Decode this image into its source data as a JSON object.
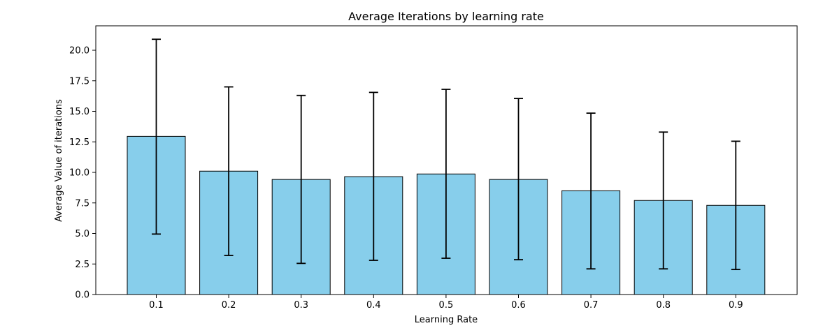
{
  "chart_data": {
    "type": "bar",
    "title": "Average Iterations by learning rate",
    "xlabel": "Learning Rate",
    "ylabel": "Average Value of iterations",
    "categories": [
      "0.1",
      "0.2",
      "0.3",
      "0.4",
      "0.5",
      "0.6",
      "0.7",
      "0.8",
      "0.9"
    ],
    "values": [
      12.95,
      10.1,
      9.42,
      9.65,
      9.87,
      9.42,
      8.5,
      7.7,
      7.3
    ],
    "error_low": [
      4.95,
      3.2,
      2.55,
      2.8,
      2.97,
      2.85,
      2.1,
      2.1,
      2.05
    ],
    "error_high": [
      20.9,
      17.0,
      16.3,
      16.55,
      16.8,
      16.05,
      14.85,
      13.3,
      12.55
    ],
    "ylim": [
      0,
      22
    ],
    "yticks": [
      0.0,
      2.5,
      5.0,
      7.5,
      10.0,
      12.5,
      15.0,
      17.5,
      20.0
    ],
    "ytick_labels": [
      "0.0",
      "2.5",
      "5.0",
      "7.5",
      "10.0",
      "12.5",
      "15.0",
      "17.5",
      "20.0"
    ],
    "grid": false,
    "legend": "none",
    "bar_color": "#87ceeb",
    "bar_edge_color": "#000000",
    "error_color": "#000000"
  }
}
